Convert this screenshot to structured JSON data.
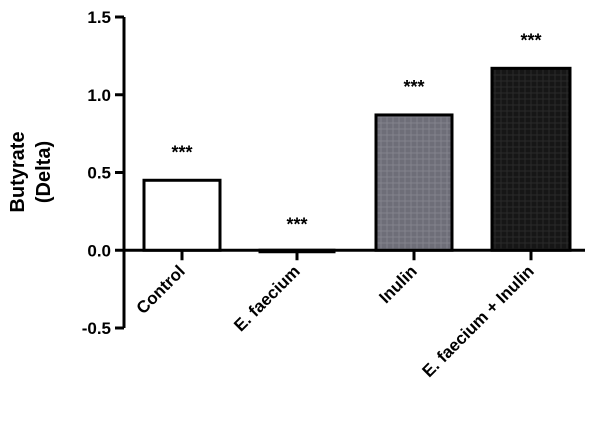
{
  "chart_data": {
    "type": "bar",
    "categories": [
      "Control",
      "E. faecium",
      "Inulin",
      "E. faecium + Inulin"
    ],
    "values": [
      0.45,
      -0.005,
      0.87,
      1.17
    ],
    "significance": [
      "***",
      "***",
      "***",
      "***"
    ],
    "ylabel_lines": [
      "Butyrate",
      "(Delta)"
    ],
    "xlabel": "",
    "title": "",
    "ylim": [
      -0.5,
      1.5
    ],
    "yticks": [
      -0.5,
      0.0,
      0.5,
      1.0,
      1.5
    ],
    "ytick_labels": [
      "-0.5",
      "0.0",
      "0.5",
      "1.0",
      "1.5"
    ],
    "grid": false,
    "bar_fills": [
      "#ffffff",
      "#ffffff",
      "#6e6e78",
      "#161616"
    ],
    "bar_stroke": "#000000"
  }
}
